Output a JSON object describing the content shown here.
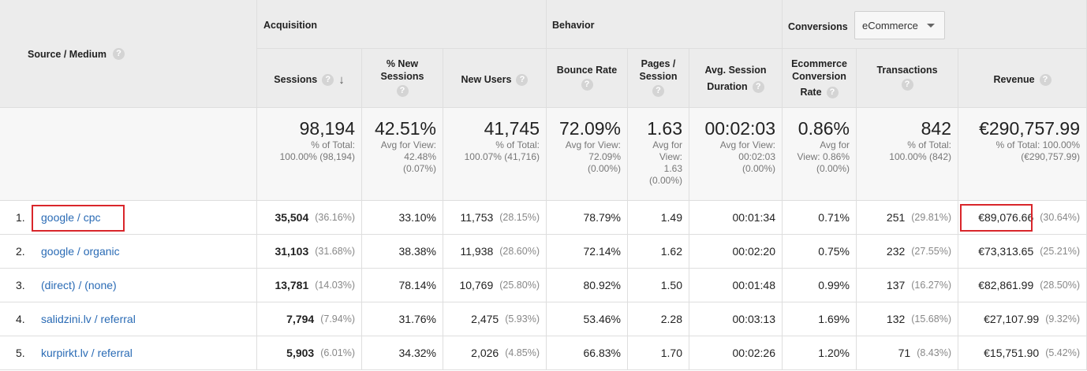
{
  "header": {
    "source_medium": "Source / Medium",
    "acquisition": "Acquisition",
    "behavior": "Behavior",
    "conversions": "Conversions",
    "conversion_select": "eCommerce",
    "help": "?"
  },
  "columns": {
    "sessions": "Sessions",
    "pct_new_sessions_1": "% New",
    "pct_new_sessions_2": "Sessions",
    "new_users": "New Users",
    "bounce_rate": "Bounce Rate",
    "pages_session_1": "Pages /",
    "pages_session_2": "Session",
    "avg_session_1": "Avg. Session",
    "avg_session_2": "Duration",
    "ecr_1": "Ecommerce",
    "ecr_2": "Conversion",
    "ecr_3": "Rate",
    "transactions": "Transactions",
    "revenue": "Revenue"
  },
  "totals": {
    "sessions": {
      "value": "98,194",
      "sub1": "% of Total:",
      "sub2": "100.00% (98,194)"
    },
    "pct_new": {
      "value": "42.51%",
      "sub1": "Avg for View:",
      "sub2": "42.48%",
      "sub3": "(0.07%)"
    },
    "new_users": {
      "value": "41,745",
      "sub1": "% of Total:",
      "sub2": "100.07% (41,716)"
    },
    "bounce": {
      "value": "72.09%",
      "sub1": "Avg for View:",
      "sub2": "72.09%",
      "sub3": "(0.00%)"
    },
    "pages": {
      "value": "1.63",
      "sub1": "Avg for",
      "sub2": "View:",
      "sub3": "1.63",
      "sub4": "(0.00%)"
    },
    "duration": {
      "value": "00:02:03",
      "sub1": "Avg for View:",
      "sub2": "00:02:03",
      "sub3": "(0.00%)"
    },
    "ecr": {
      "value": "0.86%",
      "sub1": "Avg for",
      "sub2": "View: 0.86%",
      "sub3": "(0.00%)"
    },
    "transactions": {
      "value": "842",
      "sub1": "% of Total:",
      "sub2": "100.00% (842)"
    },
    "revenue": {
      "value": "€290,757.99",
      "sub1": "% of Total: 100.00%",
      "sub2": "(€290,757.99)"
    }
  },
  "rows": [
    {
      "rank": "1.",
      "source": "google / cpc",
      "sessions": "35,504",
      "sessions_pct": "(36.16%)",
      "pct_new": "33.10%",
      "new_users": "11,753",
      "new_users_pct": "(28.15%)",
      "bounce": "78.79%",
      "pages": "1.49",
      "duration": "00:01:34",
      "ecr": "0.71%",
      "transactions": "251",
      "transactions_pct": "(29.81%)",
      "revenue": "€89,076.66",
      "revenue_pct": "(30.64%)"
    },
    {
      "rank": "2.",
      "source": "google / organic",
      "sessions": "31,103",
      "sessions_pct": "(31.68%)",
      "pct_new": "38.38%",
      "new_users": "11,938",
      "new_users_pct": "(28.60%)",
      "bounce": "72.14%",
      "pages": "1.62",
      "duration": "00:02:20",
      "ecr": "0.75%",
      "transactions": "232",
      "transactions_pct": "(27.55%)",
      "revenue": "€73,313.65",
      "revenue_pct": "(25.21%)"
    },
    {
      "rank": "3.",
      "source": "(direct) / (none)",
      "sessions": "13,781",
      "sessions_pct": "(14.03%)",
      "pct_new": "78.14%",
      "new_users": "10,769",
      "new_users_pct": "(25.80%)",
      "bounce": "80.92%",
      "pages": "1.50",
      "duration": "00:01:48",
      "ecr": "0.99%",
      "transactions": "137",
      "transactions_pct": "(16.27%)",
      "revenue": "€82,861.99",
      "revenue_pct": "(28.50%)"
    },
    {
      "rank": "4.",
      "source": "salidzini.lv / referral",
      "sessions": "7,794",
      "sessions_pct": "(7.94%)",
      "pct_new": "31.76%",
      "new_users": "2,475",
      "new_users_pct": "(5.93%)",
      "bounce": "53.46%",
      "pages": "2.28",
      "duration": "00:03:13",
      "ecr": "1.69%",
      "transactions": "132",
      "transactions_pct": "(15.68%)",
      "revenue": "€27,107.99",
      "revenue_pct": "(9.32%)"
    },
    {
      "rank": "5.",
      "source": "kurpirkt.lv / referral",
      "sessions": "5,903",
      "sessions_pct": "(6.01%)",
      "pct_new": "34.32%",
      "new_users": "2,026",
      "new_users_pct": "(4.85%)",
      "bounce": "66.83%",
      "pages": "1.70",
      "duration": "00:02:26",
      "ecr": "1.20%",
      "transactions": "71",
      "transactions_pct": "(8.43%)",
      "revenue": "€15,751.90",
      "revenue_pct": "(5.42%)"
    }
  ]
}
